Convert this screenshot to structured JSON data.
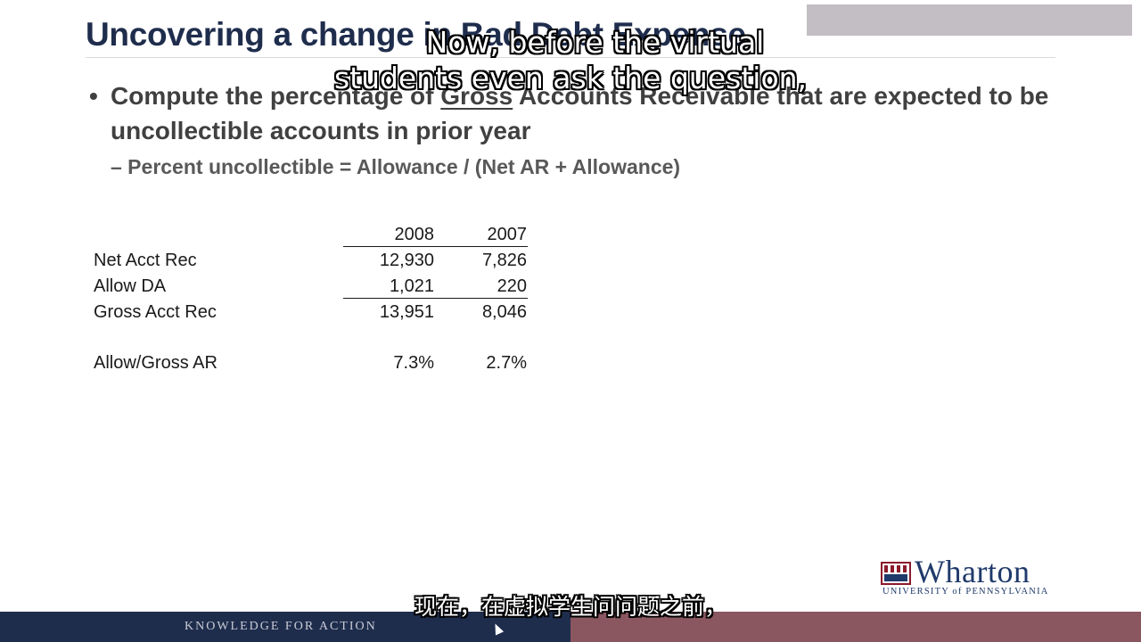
{
  "slide": {
    "title": "Uncovering a change in Bad Debt Expense",
    "bullet_parts": [
      "Compute the percentage of ",
      "Gross",
      " Accounts Receivable that are expected to be uncollectible accounts in prior year"
    ],
    "sub_bullet": "– Percent uncollectible = Allowance / (Net AR + Allowance)"
  },
  "table": {
    "columns": [
      "2008",
      "2007"
    ],
    "rows": [
      {
        "label": "Net Acct Rec",
        "values": [
          "12,930",
          "7,826"
        ]
      },
      {
        "label": "Allow DA",
        "values": [
          "1,021",
          "220"
        ]
      },
      {
        "label": "Gross Acct Rec",
        "values": [
          "13,951",
          "8,046"
        ]
      },
      {
        "label": "Allow/Gross AR",
        "values": [
          "7.3%",
          "2.7%"
        ]
      }
    ]
  },
  "logo": {
    "name": "Wharton",
    "subtitle": "UNIVERSITY of PENNSYLVANIA"
  },
  "footer": {
    "tagline": "KNOWLEDGE FOR ACTION"
  },
  "captions": {
    "english_line1": "Now, before the virtual",
    "english_line2": "students even ask the question,",
    "chinese": "现在，在虚拟学生问问题之前，"
  },
  "colors": {
    "title": "#1f2d4d",
    "footer_left": "#1f2d4d",
    "footer_right": "#8a5660",
    "logo": "#1f3a6b"
  }
}
